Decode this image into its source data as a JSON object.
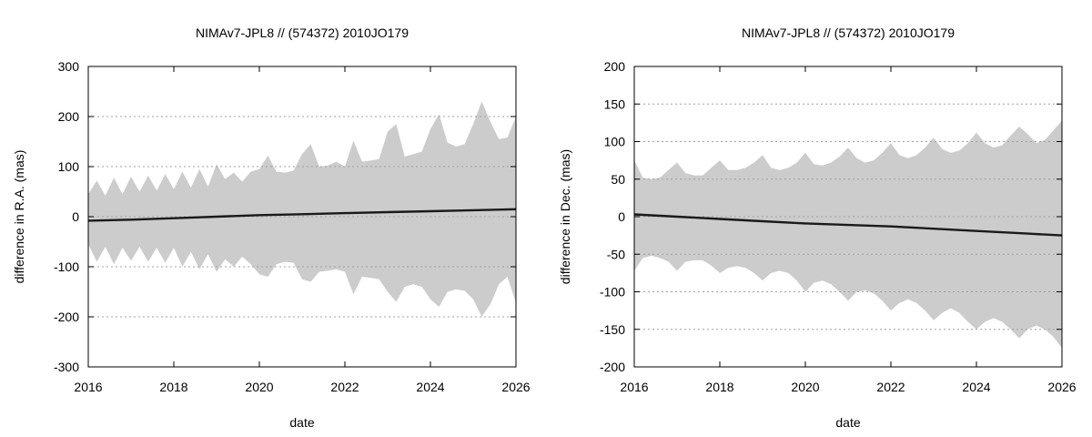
{
  "chart_data": [
    {
      "type": "area",
      "title": "NIMAv7-JPL8 // (574372) 2010JO179",
      "xlabel": "date",
      "ylabel": "difference in R.A. (mas)",
      "xlim": [
        2016,
        2026
      ],
      "ylim": [
        -300,
        300
      ],
      "xticks": [
        2016,
        2018,
        2020,
        2022,
        2024,
        2026
      ],
      "yticks": [
        -300,
        -200,
        -100,
        0,
        100,
        200,
        300
      ],
      "grid": "horizontal dotted",
      "band_color": "#cccccc",
      "line_color": "#1a1a1a",
      "series": [
        {
          "kind": "uncertainty-band",
          "x": [
            2016.0,
            2016.2,
            2016.4,
            2016.6,
            2016.8,
            2017.0,
            2017.2,
            2017.4,
            2017.6,
            2017.8,
            2018.0,
            2018.2,
            2018.4,
            2018.6,
            2018.8,
            2019.0,
            2019.2,
            2019.4,
            2019.6,
            2019.8,
            2020.0,
            2020.2,
            2020.4,
            2020.6,
            2020.8,
            2021.0,
            2021.2,
            2021.4,
            2021.6,
            2021.8,
            2022.0,
            2022.2,
            2022.4,
            2022.6,
            2022.8,
            2023.0,
            2023.2,
            2023.4,
            2023.6,
            2023.8,
            2024.0,
            2024.2,
            2024.4,
            2024.6,
            2024.8,
            2025.0,
            2025.2,
            2025.4,
            2025.6,
            2025.8,
            2026.0
          ],
          "upper": [
            45,
            72,
            42,
            78,
            45,
            80,
            50,
            82,
            52,
            85,
            55,
            90,
            58,
            95,
            60,
            105,
            75,
            88,
            70,
            90,
            95,
            122,
            90,
            88,
            92,
            125,
            145,
            100,
            102,
            110,
            100,
            152,
            110,
            112,
            115,
            170,
            185,
            120,
            125,
            130,
            175,
            205,
            148,
            140,
            145,
            185,
            230,
            190,
            155,
            158,
            200
          ],
          "lower": [
            -55,
            -90,
            -60,
            -95,
            -62,
            -88,
            -60,
            -90,
            -62,
            -92,
            -62,
            -100,
            -70,
            -105,
            -75,
            -110,
            -85,
            -100,
            -80,
            -95,
            -115,
            -120,
            -95,
            -90,
            -92,
            -125,
            -130,
            -110,
            -108,
            -105,
            -110,
            -155,
            -120,
            -122,
            -125,
            -150,
            -170,
            -140,
            -135,
            -140,
            -165,
            -180,
            -150,
            -145,
            -148,
            -165,
            -200,
            -175,
            -135,
            -120,
            -172
          ]
        },
        {
          "kind": "line",
          "x": [
            2016,
            2017,
            2018,
            2019,
            2020,
            2021,
            2022,
            2023,
            2024,
            2025,
            2026
          ],
          "values": [
            -8,
            -6,
            -3,
            0,
            3,
            5,
            7,
            9,
            11,
            13,
            15
          ]
        }
      ]
    },
    {
      "type": "area",
      "title": "NIMAv7-JPL8 // (574372) 2010JO179",
      "xlabel": "date",
      "ylabel": "difference in Dec. (mas)",
      "xlim": [
        2016,
        2026
      ],
      "ylim": [
        -200,
        200
      ],
      "xticks": [
        2016,
        2018,
        2020,
        2022,
        2024,
        2026
      ],
      "yticks": [
        -200,
        -150,
        -100,
        -50,
        0,
        50,
        100,
        150,
        200
      ],
      "grid": "horizontal dotted",
      "band_color": "#cccccc",
      "line_color": "#1a1a1a",
      "series": [
        {
          "kind": "uncertainty-band",
          "x": [
            2016.0,
            2016.2,
            2016.4,
            2016.6,
            2016.8,
            2017.0,
            2017.2,
            2017.4,
            2017.6,
            2017.8,
            2018.0,
            2018.2,
            2018.4,
            2018.6,
            2018.8,
            2019.0,
            2019.2,
            2019.4,
            2019.6,
            2019.8,
            2020.0,
            2020.2,
            2020.4,
            2020.6,
            2020.8,
            2021.0,
            2021.2,
            2021.4,
            2021.6,
            2021.8,
            2022.0,
            2022.2,
            2022.4,
            2022.6,
            2022.8,
            2023.0,
            2023.2,
            2023.4,
            2023.6,
            2023.8,
            2024.0,
            2024.2,
            2024.4,
            2024.6,
            2024.8,
            2025.0,
            2025.2,
            2025.4,
            2025.6,
            2025.8,
            2026.0
          ],
          "upper": [
            75,
            52,
            50,
            52,
            62,
            72,
            58,
            55,
            55,
            65,
            75,
            62,
            62,
            65,
            72,
            82,
            65,
            62,
            65,
            72,
            85,
            70,
            68,
            72,
            80,
            92,
            78,
            72,
            75,
            85,
            98,
            82,
            78,
            82,
            92,
            105,
            90,
            85,
            88,
            98,
            112,
            98,
            92,
            95,
            108,
            120,
            110,
            98,
            102,
            115,
            128
          ],
          "lower": [
            -72,
            -55,
            -52,
            -55,
            -60,
            -72,
            -60,
            -58,
            -58,
            -65,
            -75,
            -68,
            -66,
            -68,
            -75,
            -85,
            -75,
            -72,
            -75,
            -85,
            -100,
            -88,
            -85,
            -90,
            -100,
            -112,
            -100,
            -98,
            -102,
            -112,
            -125,
            -115,
            -110,
            -115,
            -125,
            -138,
            -128,
            -122,
            -128,
            -140,
            -150,
            -140,
            -135,
            -140,
            -150,
            -162,
            -150,
            -145,
            -150,
            -160,
            -175
          ]
        },
        {
          "kind": "line",
          "x": [
            2016,
            2017,
            2018,
            2019,
            2020,
            2021,
            2022,
            2023,
            2024,
            2025,
            2026
          ],
          "values": [
            3,
            0,
            -3,
            -6,
            -9,
            -11,
            -13,
            -16,
            -19,
            -22,
            -25
          ]
        }
      ]
    }
  ]
}
